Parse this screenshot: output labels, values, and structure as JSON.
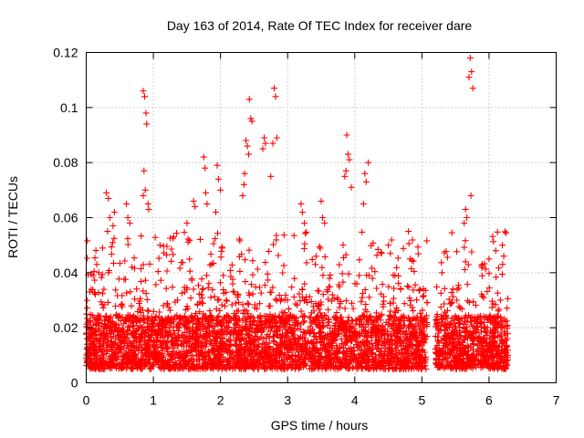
{
  "chart_data": {
    "type": "scatter",
    "title": "Day 163 of 2014, Rate Of TEC Index for receiver dare",
    "xlabel": "GPS time / hours",
    "ylabel": "ROTI / TECUs",
    "xlim": [
      0,
      7
    ],
    "ylim": [
      0,
      0.12
    ],
    "x_ticks": [
      0,
      1,
      2,
      3,
      4,
      5,
      6,
      7
    ],
    "x_tick_labels": [
      "0",
      "1",
      "2",
      "3",
      "4",
      "5",
      "6",
      "7"
    ],
    "y_ticks": [
      0,
      0.02,
      0.04,
      0.06,
      0.08,
      0.1,
      0.12
    ],
    "y_tick_labels": [
      "0",
      "0.02",
      "0.04",
      "0.06",
      "0.08",
      "0.1",
      "0.12"
    ],
    "grid": true,
    "marker": "plus",
    "marker_color": "#ff0000",
    "series": [
      {
        "name": "ROTI",
        "x": [
          0.85,
          0.87,
          0.89,
          0.9,
          0.86,
          0.88,
          0.92,
          0.93,
          0.85,
          2.43,
          2.45,
          2.47,
          2.4,
          2.38,
          2.42,
          2.36,
          2.35,
          2.33,
          2.65,
          2.67,
          2.63,
          2.8,
          2.82,
          2.84,
          2.78,
          2.75,
          3.88,
          3.9,
          3.92,
          3.87,
          3.95,
          3.85,
          4.15,
          4.17,
          4.2,
          4.13,
          5.72,
          5.74,
          5.76,
          5.7,
          5.73,
          5.65,
          5.67,
          5.63,
          1.75,
          1.77,
          1.78,
          1.8,
          1.95,
          1.97,
          2.0,
          1.93,
          0.3,
          0.33,
          0.35,
          0.4,
          0.42,
          1.1,
          1.3,
          1.5,
          1.6,
          1.62,
          0.6,
          0.62,
          0.65,
          3.2,
          3.22,
          3.25,
          3.5,
          3.52,
          3.55,
          4.4,
          4.5,
          4.8,
          5.3,
          5.9,
          6.0,
          6.1,
          6.2,
          6.22
        ],
        "y": [
          0.106,
          0.104,
          0.098,
          0.094,
          0.077,
          0.07,
          0.065,
          0.063,
          0.068,
          0.103,
          0.096,
          0.095,
          0.086,
          0.088,
          0.083,
          0.076,
          0.072,
          0.068,
          0.089,
          0.087,
          0.085,
          0.107,
          0.104,
          0.089,
          0.087,
          0.075,
          0.09,
          0.083,
          0.081,
          0.077,
          0.071,
          0.075,
          0.076,
          0.073,
          0.08,
          0.065,
          0.118,
          0.113,
          0.107,
          0.111,
          0.068,
          0.063,
          0.06,
          0.058,
          0.082,
          0.078,
          0.069,
          0.065,
          0.079,
          0.074,
          0.07,
          0.062,
          0.069,
          0.067,
          0.06,
          0.057,
          0.062,
          0.05,
          0.053,
          0.058,
          0.066,
          0.064,
          0.065,
          0.06,
          0.058,
          0.065,
          0.062,
          0.058,
          0.066,
          0.06,
          0.058,
          0.047,
          0.05,
          0.055,
          0.04,
          0.043,
          0.045,
          0.048,
          0.05,
          0.046
        ]
      }
    ],
    "dense_band": {
      "x_segments": [
        [
          0,
          5.08
        ],
        [
          5.2,
          6.28
        ]
      ],
      "typical_range": [
        0.005,
        0.035
      ],
      "median": 0.014,
      "upper_scatter_max": 0.055
    }
  }
}
